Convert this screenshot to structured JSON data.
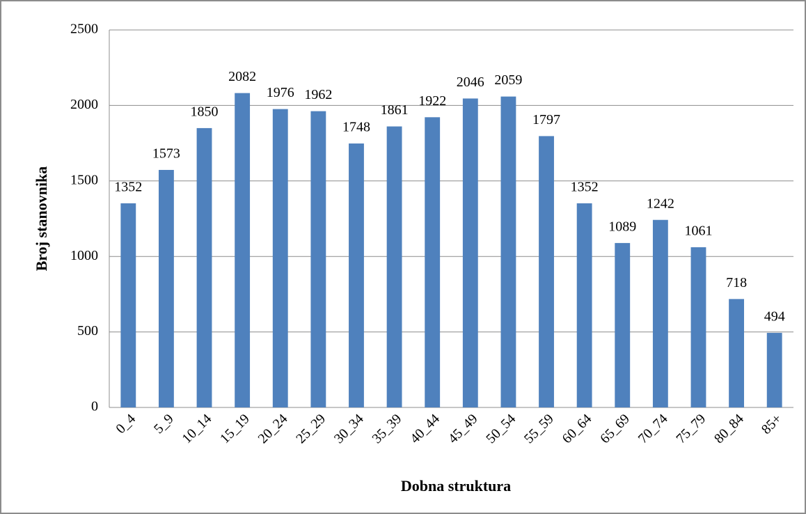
{
  "chart_data": {
    "type": "bar",
    "categories": [
      "0_4",
      "5_9",
      "10_14",
      "15_19",
      "20_24",
      "25_29",
      "30_34",
      "35_39",
      "40_44",
      "45_49",
      "50_54",
      "55_59",
      "60_64",
      "65_69",
      "70_74",
      "75_79",
      "80_84",
      "85+"
    ],
    "values": [
      1352,
      1573,
      1850,
      2082,
      1976,
      1962,
      1748,
      1861,
      1922,
      2046,
      2059,
      1797,
      1352,
      1089,
      1242,
      1061,
      718,
      494
    ],
    "color": "#4f81bd",
    "x_label": "Dobna struktura",
    "y_label": "Broj stanovnika",
    "ylim": [
      0,
      2500
    ],
    "yticks": [
      0,
      500,
      1000,
      1500,
      2000,
      2500
    ],
    "grid": true
  }
}
